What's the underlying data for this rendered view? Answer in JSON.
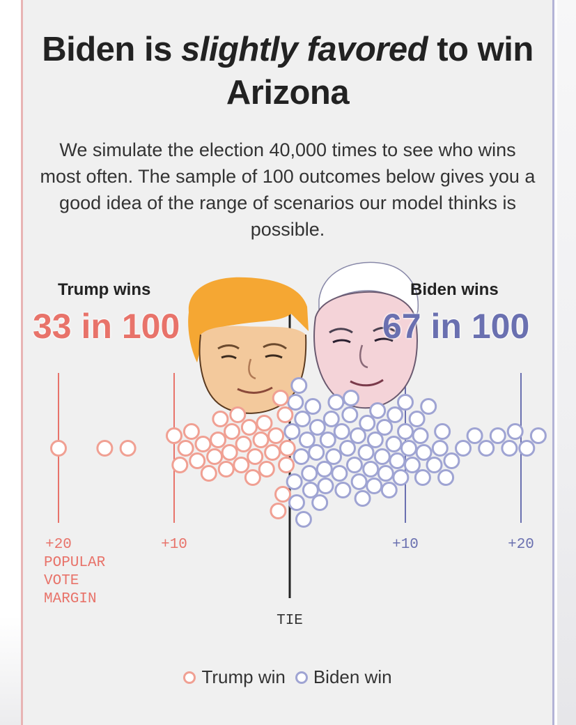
{
  "title": {
    "part1": "Biden is ",
    "emphasis": "slightly favored",
    "part2": " to win Arizona"
  },
  "subtitle": "We simulate the election 40,000 times to see who wins most often. The sample of 100 outcomes below gives you a good idea of the range of scenarios our model thinks is possible.",
  "trump": {
    "label": "Trump wins",
    "count": "33 in 100",
    "color": "#e8736a",
    "dot_color": "#f0a093",
    "image": "trump-caricature"
  },
  "biden": {
    "label": "Biden wins",
    "count": "67 in 100",
    "color": "#6a70b0",
    "dot_color": "#9fa4d3",
    "image": "biden-caricature"
  },
  "axis": {
    "tie_label": "TIE",
    "caption": [
      "POPULAR",
      "VOTE",
      "MARGIN"
    ],
    "ticks": [
      {
        "value": -20,
        "label": "+20",
        "side": "trump"
      },
      {
        "value": -10,
        "label": "+10",
        "side": "trump"
      },
      {
        "value": 10,
        "label": "+10",
        "side": "biden"
      },
      {
        "value": 20,
        "label": "+20",
        "side": "biden"
      }
    ]
  },
  "legend": {
    "trump": "Trump win",
    "biden": "Biden win"
  },
  "chart_data": {
    "type": "scatter",
    "xlabel": "Popular vote margin",
    "xlim": [
      -20,
      22
    ],
    "series": [
      {
        "name": "Trump win",
        "values": [
          -20,
          -16,
          -14,
          -10,
          -9,
          -8,
          -7.5,
          -7,
          -6.5,
          -6,
          -5.5,
          -5,
          -4.5,
          -4,
          -3.5,
          -3,
          -2.5,
          -2,
          -1.5,
          -1,
          -0.8,
          -0.6,
          -0.4,
          -0.2,
          -9.5,
          -8.5,
          -6.2,
          -5.2,
          -4.2,
          -3.2,
          -2.2,
          -1.2,
          -0.3
        ]
      },
      {
        "name": "Biden win",
        "values": [
          0.2,
          0.4,
          0.6,
          0.8,
          1,
          1.2,
          1.5,
          1.8,
          2,
          2.3,
          2.6,
          3,
          3.3,
          3.6,
          4,
          4.3,
          4.6,
          5,
          5.3,
          5.6,
          6,
          6.3,
          6.6,
          7,
          7.3,
          7.6,
          8,
          8.3,
          8.6,
          9,
          9.3,
          9.6,
          10,
          10.3,
          10.6,
          11,
          11.3,
          11.6,
          12,
          12.5,
          13,
          13.5,
          14,
          15,
          16,
          17,
          18,
          19,
          20.5,
          21.5,
          0.5,
          1.1,
          1.7,
          2.4,
          3.1,
          3.8,
          4.5,
          5.2,
          5.9,
          6.7,
          7.4,
          8.2,
          9.1,
          10,
          11.5,
          13.2,
          19.5
        ]
      }
    ]
  }
}
